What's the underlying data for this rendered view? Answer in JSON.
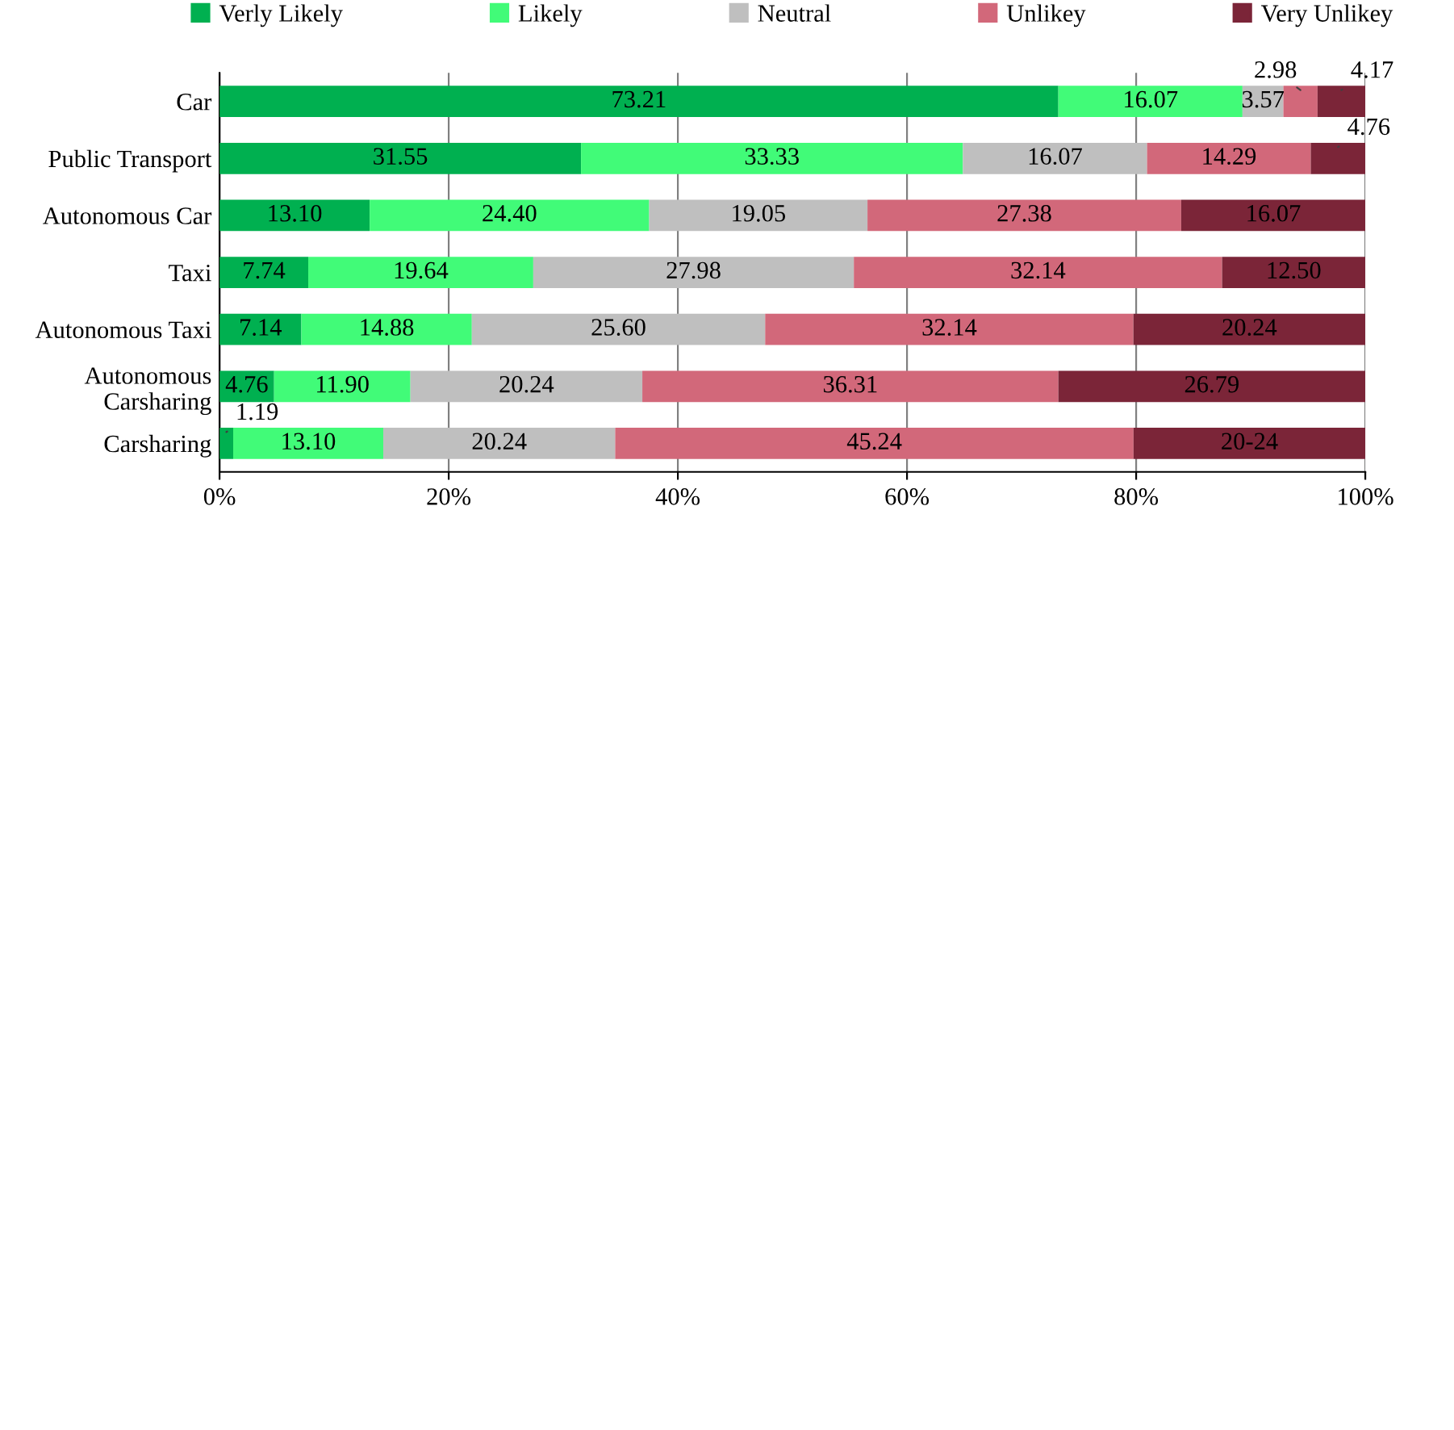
{
  "chart_data": {
    "type": "bar",
    "orientation": "horizontal",
    "stacked": true,
    "categories": [
      "Car",
      "Public Transport",
      "Autonomous Car",
      "Taxi",
      "Autonomous Taxi",
      "Autonomous\nCarsharing",
      "Carsharing"
    ],
    "series": [
      {
        "name": "Verly Likely",
        "color": "#00b050",
        "values": [
          73.21,
          31.55,
          13.1,
          7.74,
          7.14,
          4.76,
          1.19
        ],
        "value_labels": [
          "73.21",
          "31.55",
          "13.10",
          "7.74",
          "7.14",
          "4.76",
          "1.19"
        ]
      },
      {
        "name": "Likely",
        "color": "#41fb78",
        "values": [
          16.07,
          33.33,
          24.4,
          19.64,
          14.88,
          11.9,
          13.1
        ],
        "value_labels": [
          "16.07",
          "33.33",
          "24.40",
          "19.64",
          "14.88",
          "11.90",
          "13.10"
        ]
      },
      {
        "name": "Neutral",
        "color": "#bfbfbf",
        "values": [
          3.57,
          16.07,
          19.05,
          27.98,
          25.6,
          20.24,
          20.24
        ],
        "value_labels": [
          "3.57",
          "16.07",
          "19.05",
          "27.98",
          "25.60",
          "20.24",
          "20.24"
        ]
      },
      {
        "name": "Unlikey",
        "color": "#d2687a",
        "values": [
          2.98,
          14.29,
          27.38,
          32.14,
          32.14,
          36.31,
          45.24
        ],
        "value_labels": [
          "2.98",
          "14.29",
          "27.38",
          "32.14",
          "32.14",
          "36.31",
          "45.24"
        ]
      },
      {
        "name": "Very Unlikey",
        "color": "#7b2538",
        "values": [
          4.17,
          4.76,
          16.07,
          12.5,
          20.24,
          26.79,
          20.24
        ],
        "value_labels": [
          "4.17",
          "4.76",
          "16.07",
          "12.50",
          "20.24",
          "26.79",
          "20-24"
        ]
      }
    ],
    "xlim": [
      0,
      100
    ],
    "xticks": [
      {
        "value": 0,
        "label": "0%"
      },
      {
        "value": 20,
        "label": "20%"
      },
      {
        "value": 40,
        "label": "40%"
      },
      {
        "value": 60,
        "label": "60%"
      },
      {
        "value": 80,
        "label": "80%"
      },
      {
        "value": 100,
        "label": "100%"
      }
    ],
    "grid": "x",
    "legend": "top"
  }
}
